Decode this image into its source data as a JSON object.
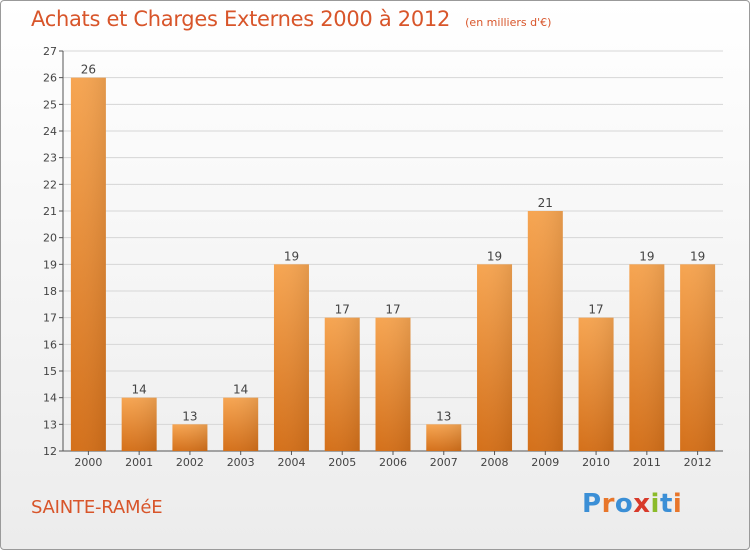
{
  "header": {
    "title": "Achats et Charges Externes 2000 à 2012",
    "subtitle": "(en milliers d'€)"
  },
  "footer": {
    "commune": "SAINTE-RAMéE",
    "brand": "Proxiti",
    "brand_letter_colors": [
      "#3b8fd6",
      "#e8762a",
      "#3b8fd6",
      "#d83a2a",
      "#8bbb2a",
      "#3b8fd6",
      "#e8762a"
    ]
  },
  "colors": {
    "bar": "#f0923a",
    "title": "#d8552a"
  },
  "chart_data": {
    "type": "bar",
    "title": "Achats et Charges Externes 2000 à 2012",
    "subtitle": "(en milliers d'€)",
    "categories": [
      "2000",
      "2001",
      "2002",
      "2003",
      "2004",
      "2005",
      "2006",
      "2007",
      "2008",
      "2009",
      "2010",
      "2011",
      "2012"
    ],
    "values": [
      26,
      14,
      13,
      14,
      19,
      17,
      17,
      13,
      19,
      21,
      17,
      19,
      19
    ],
    "ylim": [
      12,
      27
    ],
    "yticks": [
      12,
      13,
      14,
      15,
      16,
      17,
      18,
      19,
      20,
      21,
      22,
      23,
      24,
      25,
      26,
      27
    ],
    "grid": true
  }
}
